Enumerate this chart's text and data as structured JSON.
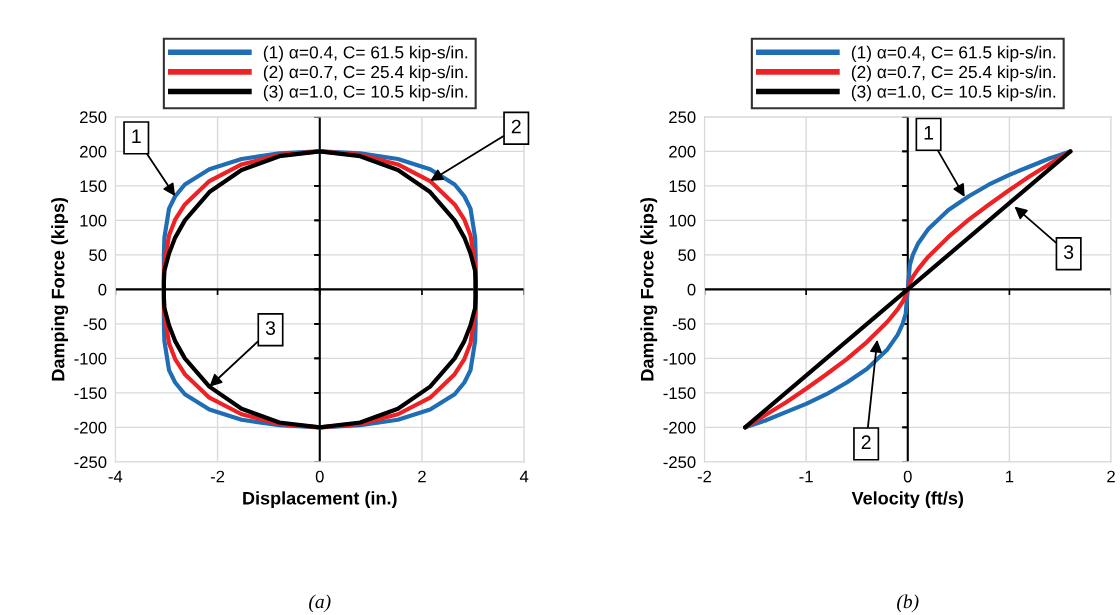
{
  "chart_data": [
    {
      "type": "line",
      "xlabel": "Displacement (in.)",
      "ylabel": "Damping Force (kips)",
      "xlim": [
        -4,
        4
      ],
      "ylim": [
        -250,
        250
      ],
      "xticks": [
        -4,
        -2,
        0,
        2,
        4
      ],
      "yticks": [
        -250,
        -200,
        -150,
        -100,
        -50,
        0,
        50,
        100,
        150,
        200,
        250
      ],
      "grid": true,
      "legend": "top",
      "marker": "none",
      "line_style": "solid",
      "series": [
        {
          "name": "(1) α=0.4, C= 61.5 kip-s/in.",
          "color": "#1f6db5",
          "x": [
            3.05,
            3.05,
            3.04,
            2.95,
            2.83,
            2.64,
            2.16,
            1.53,
            0.79,
            0,
            -0.79,
            -1.53,
            -2.16,
            -2.64,
            -2.83,
            -2.95,
            -3.04,
            -3.05,
            -3.05,
            -3.05,
            -3.04,
            -2.95,
            -2.83,
            -2.64,
            -2.16,
            -1.53,
            -0.79,
            0,
            0.79,
            1.53,
            2.16,
            2.64,
            2.83,
            2.95,
            3.04,
            3.05,
            3.05,
            3.05
          ],
          "values": [
            0,
            52,
            75,
            117,
            135,
            152,
            174,
            189,
            197,
            200,
            197,
            189,
            174,
            152,
            135,
            117,
            75,
            52,
            0,
            -52,
            -75,
            -117,
            -135,
            -152,
            -174,
            -189,
            -197,
            -200,
            -197,
            -189,
            -174,
            -152,
            -135,
            -117,
            -75,
            -52,
            0,
            52
          ]
        },
        {
          "name": "(2) α=0.7, C= 25.4 kip-s/in.",
          "color": "#ee2224",
          "x": [
            3.05,
            3.05,
            3.04,
            2.95,
            2.83,
            2.64,
            2.16,
            1.53,
            0.79,
            0,
            -0.79,
            -1.53,
            -2.16,
            -2.64,
            -2.83,
            -2.95,
            -3.04,
            -3.05,
            -3.05,
            -3.05,
            -3.04,
            -2.95,
            -2.83,
            -2.64,
            -2.16,
            -1.53,
            -0.79,
            0,
            0.79,
            1.53,
            2.16,
            2.64,
            2.83,
            2.95,
            3.04,
            3.05,
            3.05,
            3.05
          ],
          "values": [
            0,
            19,
            36,
            78,
            101,
            123,
            157,
            181,
            195,
            200,
            195,
            181,
            157,
            123,
            101,
            78,
            36,
            19,
            0,
            -19,
            -36,
            -78,
            -101,
            -123,
            -157,
            -181,
            -195,
            -200,
            -195,
            -181,
            -157,
            -123,
            -101,
            -78,
            -36,
            -19,
            0,
            19
          ]
        },
        {
          "name": "(3) α=1.0, C= 10.5 kip-s/in.",
          "color": "#000000",
          "x": [
            3.05,
            3.05,
            3.04,
            2.95,
            2.83,
            2.64,
            2.16,
            1.53,
            0.79,
            0,
            -0.79,
            -1.53,
            -2.16,
            -2.64,
            -2.83,
            -2.95,
            -3.04,
            -3.05,
            -3.05,
            -3.05,
            -3.04,
            -2.95,
            -2.83,
            -2.64,
            -2.16,
            -1.53,
            -0.79,
            0,
            0.79,
            1.53,
            2.16,
            2.64,
            2.83,
            2.95,
            3.04,
            3.05,
            3.05,
            3.05
          ],
          "values": [
            0,
            11,
            27,
            52,
            75,
            100,
            141,
            173,
            193,
            200,
            193,
            173,
            141,
            100,
            75,
            52,
            27,
            11,
            0,
            -11,
            -27,
            -52,
            -75,
            -100,
            -141,
            -173,
            -193,
            -200,
            -193,
            -173,
            -141,
            -100,
            -75,
            -52,
            -27,
            -11,
            0,
            11
          ]
        }
      ],
      "annotations": [
        {
          "text": "1",
          "x": -2.83,
          "y": 135
        },
        {
          "text": "2",
          "x": 2.16,
          "y": 157
        },
        {
          "text": "3",
          "x": -2.16,
          "y": -141
        },
        "(a)"
      ]
    },
    {
      "type": "line",
      "xlabel": "Velocity (ft/s)",
      "ylabel": "Damping Force (kips)",
      "xlim": [
        -2,
        2
      ],
      "ylim": [
        -250,
        250
      ],
      "xticks": [
        -2,
        -1,
        0,
        1,
        2
      ],
      "yticks": [
        -250,
        -200,
        -150,
        -100,
        -50,
        0,
        50,
        100,
        150,
        200,
        250
      ],
      "grid": true,
      "legend": "top",
      "marker": "none",
      "line_style": "solid",
      "x": [
        -1.6,
        -1.4,
        -1.2,
        -1.0,
        -0.8,
        -0.6,
        -0.4,
        -0.2,
        -0.1,
        -0.05,
        -0.02,
        0,
        0.02,
        0.05,
        0.1,
        0.2,
        0.4,
        0.6,
        0.8,
        1.0,
        1.2,
        1.4,
        1.6
      ],
      "series": [
        {
          "name": "(1) α=0.4, C= 61.5 kip-s/in.",
          "color": "#1f6db5",
          "values": [
            -200,
            -190,
            -178,
            -166,
            -152,
            -135,
            -115,
            -87,
            -66,
            -50,
            -35,
            0,
            35,
            50,
            66,
            87,
            115,
            135,
            152,
            166,
            178,
            190,
            200
          ]
        },
        {
          "name": "(2) α=0.7, C= 25.4 kip-s/in.",
          "color": "#ee2224",
          "values": [
            -200,
            -182,
            -164,
            -144,
            -123,
            -101,
            -76,
            -47,
            -29,
            -18,
            -9,
            0,
            9,
            18,
            29,
            47,
            76,
            101,
            123,
            144,
            164,
            182,
            200
          ]
        },
        {
          "name": "(3) α=1.0, C= 10.5 kip-s/in.",
          "color": "#000000",
          "x": [
            -1.6,
            1.6
          ],
          "values": [
            -200,
            200
          ]
        }
      ],
      "annotations": [
        {
          "text": "1",
          "x": 0.56,
          "y": 134
        },
        {
          "text": "3",
          "x": 1.05,
          "y": 120
        },
        {
          "text": "2",
          "x": -0.3,
          "y": -73
        },
        "(b)"
      ]
    }
  ]
}
